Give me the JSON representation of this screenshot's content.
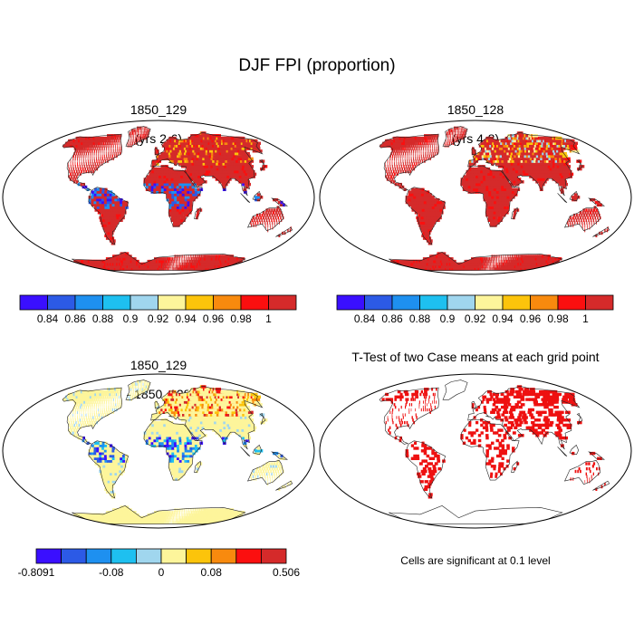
{
  "figure": {
    "title": "DJF FPI (proportion)"
  },
  "chart_data": [
    {
      "type": "heatmap",
      "map_projection": "robinson",
      "title_line1": "1850_129",
      "title_line2": "(yrs 2-6)",
      "colorbar": {
        "colors": [
          "#3a0fff",
          "#2c5ae6",
          "#1e90f0",
          "#1ec0f0",
          "#a0d6ee",
          "#fdf59b",
          "#fcc40b",
          "#f88a0e",
          "#fb0f0f",
          "#d52a2a"
        ],
        "tick_labels": [
          "0.84",
          "0.86",
          "0.88",
          "0.9",
          "0.92",
          "0.94",
          "0.96",
          "0.98",
          "1"
        ]
      }
    },
    {
      "type": "heatmap",
      "map_projection": "robinson",
      "title_line1": "1850_128",
      "title_line2": "(yrs 4-8)",
      "colorbar": {
        "colors": [
          "#3a0fff",
          "#2c5ae6",
          "#1e90f0",
          "#1ec0f0",
          "#a0d6ee",
          "#fdf59b",
          "#fcc40b",
          "#f88a0e",
          "#fb0f0f",
          "#d52a2a"
        ],
        "tick_labels": [
          "0.84",
          "0.86",
          "0.88",
          "0.9",
          "0.92",
          "0.94",
          "0.96",
          "0.98",
          "1"
        ]
      }
    },
    {
      "type": "heatmap",
      "map_projection": "robinson",
      "title_line1": "1850_129",
      "title_line2": "- 1850_128",
      "colorbar": {
        "colors": [
          "#3a0fff",
          "#2c5ae6",
          "#1e90f0",
          "#1ec0f0",
          "#a0d6ee",
          "#fdf59b",
          "#fcc40b",
          "#f88a0e",
          "#fb0f0f",
          "#d52a2a"
        ],
        "tick_labels": [
          {
            "label": "-0.8091",
            "boundary": 0
          },
          {
            "label": "-0.08",
            "boundary": 3
          },
          {
            "label": "0",
            "boundary": 5
          },
          {
            "label": "0.08",
            "boundary": 7
          },
          {
            "label": "0.506",
            "boundary": 10
          }
        ]
      }
    },
    {
      "type": "heatmap",
      "map_projection": "robinson",
      "title": "T-Test of two Case means at each grid point",
      "note": "Cells are significant at 0.1 level",
      "marker_color": "#ee1111"
    }
  ]
}
